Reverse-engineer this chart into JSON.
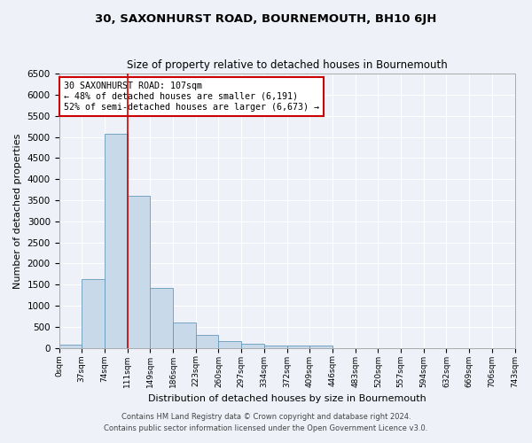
{
  "title": "30, SAXONHURST ROAD, BOURNEMOUTH, BH10 6JH",
  "subtitle": "Size of property relative to detached houses in Bournemouth",
  "xlabel": "Distribution of detached houses by size in Bournemouth",
  "ylabel": "Number of detached properties",
  "footnote1": "Contains HM Land Registry data © Crown copyright and database right 2024.",
  "footnote2": "Contains public sector information licensed under the Open Government Licence v3.0.",
  "annotation_title": "30 SAXONHURST ROAD: 107sqm",
  "annotation_line2": "← 48% of detached houses are smaller (6,191)",
  "annotation_line3": "52% of semi-detached houses are larger (6,673) →",
  "bar_color": "#c8daea",
  "bar_edge_color": "#6699bb",
  "line_color": "#cc0000",
  "annotation_box_edge": "#cc0000",
  "background_color": "#eef2f8",
  "ylim": [
    0,
    6500
  ],
  "yticks": [
    0,
    500,
    1000,
    1500,
    2000,
    2500,
    3000,
    3500,
    4000,
    4500,
    5000,
    5500,
    6000,
    6500
  ],
  "bin_labels": [
    "0sqm",
    "37sqm",
    "74sqm",
    "111sqm",
    "149sqm",
    "186sqm",
    "223sqm",
    "260sqm",
    "297sqm",
    "334sqm",
    "372sqm",
    "409sqm",
    "446sqm",
    "483sqm",
    "520sqm",
    "557sqm",
    "594sqm",
    "632sqm",
    "669sqm",
    "706sqm",
    "743sqm"
  ],
  "bar_heights": [
    75,
    1625,
    5075,
    3600,
    1410,
    600,
    305,
    155,
    90,
    50,
    55,
    60,
    0,
    0,
    0,
    0,
    0,
    0,
    0,
    0
  ],
  "n_bins": 20,
  "red_line_x": 3
}
